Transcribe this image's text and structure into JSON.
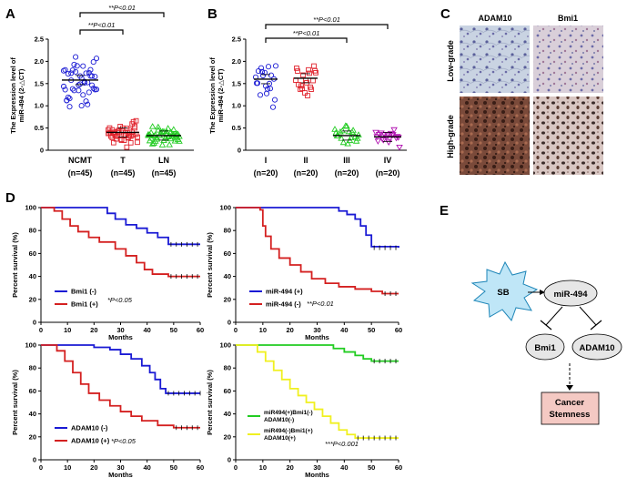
{
  "panels": {
    "a": "A",
    "b": "B",
    "c": "C",
    "d": "D",
    "e": "E"
  },
  "chart_data": [
    {
      "id": "A",
      "type": "scatter",
      "ylabel": "The Expression level of miR-494 (2-△CT)",
      "ylabel_lines": [
        "The Expression level of",
        "miR-494 (2-△CT)"
      ],
      "ylim": [
        0,
        2.5
      ],
      "yticks": [
        "0",
        "0.5",
        "1.0",
        "1.5",
        "2.0",
        "2.5"
      ],
      "groups": [
        {
          "label": "NCMT",
          "n": "(n=45)",
          "mean": 1.58,
          "color": "#1a1ad4",
          "marker": "circle"
        },
        {
          "label": "T",
          "n": "(n=45)",
          "mean": 0.4,
          "color": "#e0202a",
          "marker": "square"
        },
        {
          "label": "LN",
          "n": "(n=45)",
          "mean": 0.33,
          "color": "#22cc22",
          "marker": "triangle"
        }
      ],
      "significance": [
        {
          "text": "**P<0.01",
          "from": "NCMT",
          "to": "LN"
        },
        {
          "text": "**P<0.01",
          "from": "NCMT",
          "to": "T"
        }
      ]
    },
    {
      "id": "B",
      "type": "scatter",
      "ylabel": "The Expression level of miR-494 (2-△CT)",
      "ylabel_lines": [
        "The Expression level of",
        "miR-494 (2-△CT)"
      ],
      "ylim": [
        0,
        2.5
      ],
      "yticks": [
        "0",
        "0.5",
        "1.0",
        "1.5",
        "2.0",
        "2.5"
      ],
      "groups": [
        {
          "label": "I",
          "n": "(n=20)",
          "mean": 1.6,
          "color": "#1a1ad4",
          "marker": "circle"
        },
        {
          "label": "II",
          "n": "(n=20)",
          "mean": 1.62,
          "color": "#e0202a",
          "marker": "square"
        },
        {
          "label": "III",
          "n": "(n=20)",
          "mean": 0.33,
          "color": "#22cc22",
          "marker": "triangle"
        },
        {
          "label": "IV",
          "n": "(n=20)",
          "mean": 0.3,
          "color": "#b010b0",
          "marker": "invtriangle"
        }
      ],
      "significance": [
        {
          "text": "**P<0.01",
          "from": "I",
          "to": "IV"
        },
        {
          "text": "**P<0.01",
          "from": "I",
          "to": "III"
        }
      ]
    },
    {
      "id": "D1",
      "type": "line",
      "title": "",
      "xlabel": "Months",
      "ylabel": "Percent survival (%)",
      "xlim": [
        0,
        60
      ],
      "ylim": [
        0,
        100
      ],
      "xticks": [
        "0",
        "10",
        "20",
        "30",
        "40",
        "50",
        "60"
      ],
      "yticks": [
        "0",
        "20",
        "40",
        "60",
        "80",
        "100"
      ],
      "pvalue": "*P<0.05",
      "series": [
        {
          "name": "Bmi1 (-)",
          "color": "#1a1ad4",
          "points": [
            [
              0,
              100
            ],
            [
              22,
              100
            ],
            [
              25,
              95
            ],
            [
              28,
              90
            ],
            [
              32,
              85
            ],
            [
              36,
              82
            ],
            [
              40,
              78
            ],
            [
              44,
              74
            ],
            [
              48,
              68
            ],
            [
              60,
              68
            ]
          ]
        },
        {
          "name": "Bmi1 (+)",
          "color": "#d42020",
          "points": [
            [
              0,
              100
            ],
            [
              5,
              97
            ],
            [
              8,
              90
            ],
            [
              11,
              84
            ],
            [
              14,
              79
            ],
            [
              18,
              74
            ],
            [
              22,
              70
            ],
            [
              28,
              64
            ],
            [
              32,
              58
            ],
            [
              36,
              52
            ],
            [
              39,
              46
            ],
            [
              42,
              42
            ],
            [
              48,
              40
            ],
            [
              60,
              40
            ]
          ]
        }
      ]
    },
    {
      "id": "D2",
      "type": "line",
      "xlabel": "Months",
      "ylabel": "Percent survival (%)",
      "xlim": [
        0,
        60
      ],
      "ylim": [
        0,
        100
      ],
      "xticks": [
        "0",
        "10",
        "20",
        "30",
        "40",
        "50",
        "60"
      ],
      "yticks": [
        "0",
        "20",
        "40",
        "60",
        "80",
        "100"
      ],
      "pvalue": "**P<0.01",
      "series": [
        {
          "name": "miR-494 (+)",
          "color": "#1a1ad4",
          "points": [
            [
              0,
              100
            ],
            [
              35,
              100
            ],
            [
              38,
              97
            ],
            [
              41,
              94
            ],
            [
              44,
              90
            ],
            [
              46,
              84
            ],
            [
              48,
              76
            ],
            [
              50,
              66
            ],
            [
              60,
              65
            ]
          ]
        },
        {
          "name": "miR-494 (-)",
          "color": "#d42020",
          "points": [
            [
              0,
              100
            ],
            [
              9,
              98
            ],
            [
              10,
              84
            ],
            [
              11,
              75
            ],
            [
              13,
              64
            ],
            [
              16,
              56
            ],
            [
              20,
              50
            ],
            [
              24,
              44
            ],
            [
              28,
              38
            ],
            [
              33,
              34
            ],
            [
              38,
              31
            ],
            [
              44,
              29
            ],
            [
              50,
              27
            ],
            [
              54,
              25
            ],
            [
              60,
              25
            ]
          ]
        }
      ]
    },
    {
      "id": "D3",
      "type": "line",
      "xlabel": "Months",
      "ylabel": "Percent survival (%)",
      "xlim": [
        0,
        60
      ],
      "ylim": [
        0,
        100
      ],
      "xticks": [
        "0",
        "10",
        "20",
        "30",
        "40",
        "50",
        "60"
      ],
      "yticks": [
        "0",
        "20",
        "40",
        "60",
        "80",
        "100"
      ],
      "pvalue": "*P<0.05",
      "series": [
        {
          "name": "ADAM10 (-)",
          "color": "#1a1ad4",
          "points": [
            [
              0,
              100
            ],
            [
              14,
              100
            ],
            [
              20,
              98
            ],
            [
              26,
              96
            ],
            [
              30,
              92
            ],
            [
              34,
              88
            ],
            [
              38,
              82
            ],
            [
              41,
              76
            ],
            [
              43,
              70
            ],
            [
              45,
              62
            ],
            [
              47,
              58
            ],
            [
              60,
              58
            ]
          ]
        },
        {
          "name": "ADAM10 (+)",
          "color": "#d42020",
          "points": [
            [
              0,
              100
            ],
            [
              6,
              95
            ],
            [
              9,
              86
            ],
            [
              12,
              76
            ],
            [
              15,
              66
            ],
            [
              18,
              58
            ],
            [
              22,
              52
            ],
            [
              26,
              47
            ],
            [
              30,
              42
            ],
            [
              34,
              38
            ],
            [
              38,
              34
            ],
            [
              44,
              30
            ],
            [
              50,
              28
            ],
            [
              60,
              28
            ]
          ]
        }
      ]
    },
    {
      "id": "D4",
      "type": "line",
      "xlabel": "Months",
      "ylabel": "Percent survival (%)",
      "xlim": [
        0,
        60
      ],
      "ylim": [
        0,
        100
      ],
      "xticks": [
        "0",
        "10",
        "20",
        "30",
        "40",
        "50",
        "60"
      ],
      "yticks": [
        "0",
        "20",
        "40",
        "60",
        "80",
        "100"
      ],
      "pvalue": "***P<0.001",
      "series": [
        {
          "name": "miR494(+)Bmi1(-) ADAM10(-)",
          "legend_lines": [
            "miR494(+)Bmi1(-)",
            "ADAM10(-)"
          ],
          "color": "#22cc22",
          "points": [
            [
              0,
              100
            ],
            [
              32,
              100
            ],
            [
              36,
              97
            ],
            [
              40,
              94
            ],
            [
              44,
              91
            ],
            [
              47,
              88
            ],
            [
              50,
              86
            ],
            [
              60,
              86
            ]
          ]
        },
        {
          "name": "miR494(-)Bmi1(+) ADAM10(+)",
          "legend_lines": [
            "miR494(-)Bmi1(+)",
            "ADAM10(+)"
          ],
          "color": "#f0f020",
          "points": [
            [
              0,
              100
            ],
            [
              8,
              94
            ],
            [
              11,
              86
            ],
            [
              14,
              78
            ],
            [
              17,
              70
            ],
            [
              20,
              62
            ],
            [
              23,
              56
            ],
            [
              26,
              50
            ],
            [
              29,
              44
            ],
            [
              32,
              38
            ],
            [
              35,
              32
            ],
            [
              38,
              26
            ],
            [
              41,
              22
            ],
            [
              44,
              19
            ],
            [
              60,
              19
            ]
          ]
        }
      ]
    }
  ],
  "ihc": {
    "col1": "ADAM10",
    "col2": "Bmi1",
    "row1": "Low-grade",
    "row2": "High-grade"
  },
  "diagram": {
    "sb": "SB",
    "mir": "miR-494",
    "bmi1": "Bmi1",
    "adam10": "ADAM10",
    "cancer": "Cancer",
    "stemness": "Stemness"
  }
}
